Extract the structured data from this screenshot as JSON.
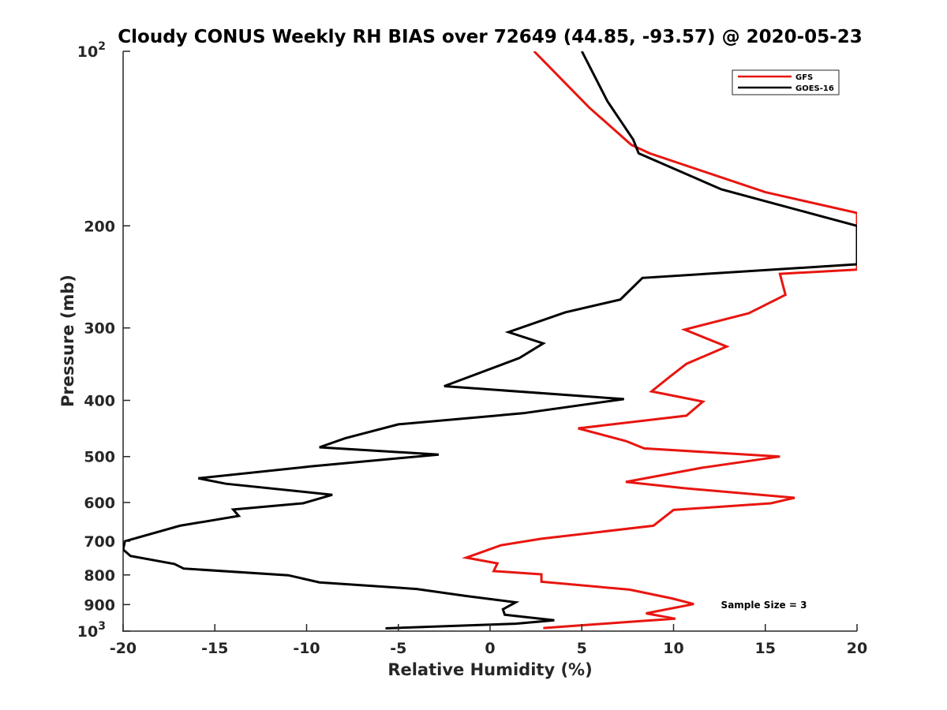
{
  "chart_data": {
    "type": "line",
    "title": "Cloudy CONUS Weekly RH BIAS over 72649 (44.85, -93.57) @ 2020-05-23",
    "xlabel": "Relative Humidity (%)",
    "ylabel": "Pressure (mb)",
    "xlim": [
      -20,
      20
    ],
    "ylim": [
      100,
      1000
    ],
    "yscale": "log",
    "yreversed": true,
    "xticks": [
      "-20",
      "-15",
      "-10",
      "-5",
      "0",
      "5",
      "10",
      "15",
      "20"
    ],
    "yticks": [
      {
        "value": 100,
        "base": "10",
        "exp": "2"
      },
      {
        "value": 200,
        "label": "200"
      },
      {
        "value": 300,
        "label": "300"
      },
      {
        "value": 400,
        "label": "400"
      },
      {
        "value": 500,
        "label": "500"
      },
      {
        "value": 600,
        "label": "600"
      },
      {
        "value": 700,
        "label": "700"
      },
      {
        "value": 800,
        "label": "800"
      },
      {
        "value": 900,
        "label": "900"
      },
      {
        "value": 1000,
        "base": "10",
        "exp": "3"
      }
    ],
    "grid": false,
    "legend_position": "top-right",
    "annotation": "Sample Size = 3",
    "series": [
      {
        "name": "GFS",
        "color": "#e8150f",
        "points": [
          [
            2.4,
            100
          ],
          [
            5.4,
            125
          ],
          [
            7.7,
            145
          ],
          [
            8.7,
            150
          ],
          [
            15,
            175
          ],
          [
            20,
            190
          ],
          [
            20,
            238
          ],
          [
            15.8,
            242
          ],
          [
            16.1,
            263
          ],
          [
            14.1,
            283
          ],
          [
            10.6,
            302
          ],
          [
            12.9,
            323
          ],
          [
            10.7,
            346
          ],
          [
            9.8,
            364
          ],
          [
            8.8,
            386
          ],
          [
            11.6,
            402
          ],
          [
            10.7,
            425
          ],
          [
            4.8,
            447
          ],
          [
            7.4,
            470
          ],
          [
            8.4,
            484
          ],
          [
            15.8,
            500
          ],
          [
            11.5,
            523
          ],
          [
            7.4,
            553
          ],
          [
            10.6,
            567
          ],
          [
            16.6,
            589
          ],
          [
            15.3,
            602
          ],
          [
            10.0,
            618
          ],
          [
            8.9,
            658
          ],
          [
            2.8,
            693
          ],
          [
            0.6,
            711
          ],
          [
            -1.3,
            747
          ],
          [
            0.4,
            764
          ],
          [
            0.2,
            788
          ],
          [
            2.8,
            798
          ],
          [
            2.8,
            822
          ],
          [
            7.6,
            848
          ],
          [
            9.9,
            878
          ],
          [
            11.1,
            898
          ],
          [
            8.5,
            932
          ],
          [
            10.1,
            952
          ],
          [
            7.6,
            964
          ],
          [
            2.9,
            988
          ]
        ]
      },
      {
        "name": "GOES-16",
        "color": "#000000",
        "points": [
          [
            5,
            100
          ],
          [
            6.4,
            122
          ],
          [
            7.8,
            142
          ],
          [
            8.1,
            150
          ],
          [
            12.6,
            173
          ],
          [
            17.9,
            192
          ],
          [
            20,
            200
          ],
          [
            20,
            233
          ],
          [
            8.3,
            246
          ],
          [
            7.1,
            268
          ],
          [
            4.1,
            282
          ],
          [
            1.0,
            305
          ],
          [
            2.9,
            319
          ],
          [
            1.6,
            338
          ],
          [
            -2.5,
            378
          ],
          [
            7.3,
            398
          ],
          [
            1.8,
            421
          ],
          [
            -5.0,
            440
          ],
          [
            -7.9,
            465
          ],
          [
            -9.3,
            482
          ],
          [
            -2.8,
            496
          ],
          [
            -9.8,
            520
          ],
          [
            -15.9,
            545
          ],
          [
            -14.4,
            557
          ],
          [
            -8.6,
            582
          ],
          [
            -10.2,
            602
          ],
          [
            -14.0,
            617
          ],
          [
            -13.7,
            633
          ],
          [
            -16.9,
            658
          ],
          [
            -19.9,
            700
          ],
          [
            -20,
            723
          ],
          [
            -19.6,
            742
          ],
          [
            -17.2,
            766
          ],
          [
            -16.7,
            780
          ],
          [
            -11.0,
            801
          ],
          [
            -9.3,
            824
          ],
          [
            -4.0,
            846
          ],
          [
            -1.3,
            870
          ],
          [
            1.4,
            892
          ],
          [
            0.7,
            917
          ],
          [
            0.8,
            937
          ],
          [
            3.5,
            958
          ],
          [
            1.4,
            971
          ],
          [
            -5.7,
            989
          ]
        ]
      }
    ]
  }
}
